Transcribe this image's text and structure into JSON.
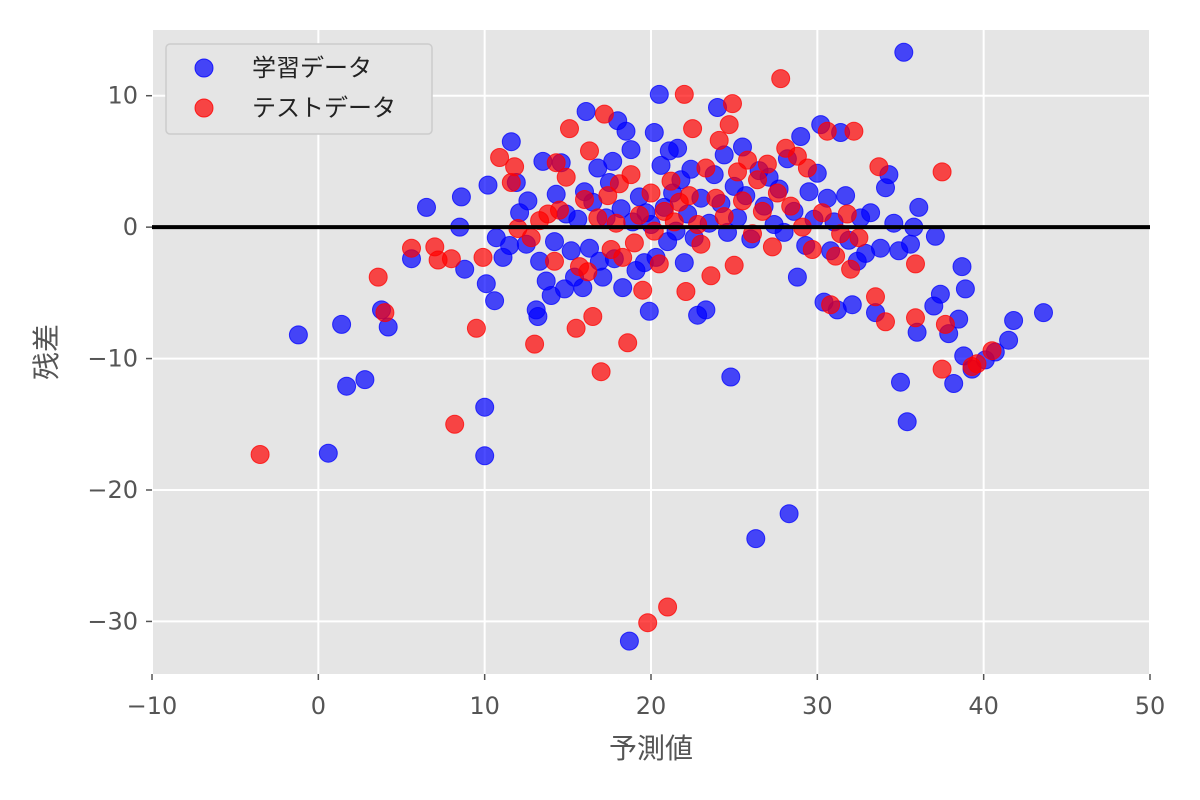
{
  "chart_data": {
    "type": "scatter",
    "title": "",
    "xlabel": "予測値",
    "ylabel": "残差",
    "xlim": [
      -10,
      50
    ],
    "ylim": [
      -34,
      15
    ],
    "xticks": [
      -10,
      0,
      10,
      20,
      30,
      40,
      50
    ],
    "yticks": [
      -30,
      -20,
      -10,
      0,
      10
    ],
    "tick_labels": {
      "x": [
        "−10",
        "0",
        "10",
        "20",
        "30",
        "40",
        "50"
      ],
      "y": [
        "−30",
        "−20",
        "−10",
        "0",
        "10"
      ]
    },
    "grid": true,
    "legend_position": "upper-left",
    "hline": {
      "y": 0,
      "color": "#000000"
    },
    "series": [
      {
        "name": "学習データ",
        "color": "#0000ff",
        "points": [
          [
            -1.2,
            -8.2
          ],
          [
            0.6,
            -17.2
          ],
          [
            1.4,
            -7.4
          ],
          [
            1.7,
            -12.1
          ],
          [
            2.8,
            -11.6
          ],
          [
            3.8,
            -6.3
          ],
          [
            4.2,
            -7.6
          ],
          [
            5.6,
            -2.4
          ],
          [
            6.5,
            1.5
          ],
          [
            8.5,
            0.0
          ],
          [
            8.6,
            2.3
          ],
          [
            8.8,
            -3.2
          ],
          [
            10.0,
            -13.7
          ],
          [
            10.0,
            -17.4
          ],
          [
            10.2,
            3.2
          ],
          [
            10.1,
            -4.3
          ],
          [
            10.7,
            -0.8
          ],
          [
            10.6,
            -5.6
          ],
          [
            11.1,
            -2.3
          ],
          [
            11.5,
            -1.4
          ],
          [
            11.6,
            6.5
          ],
          [
            11.9,
            3.4
          ],
          [
            12.1,
            1.1
          ],
          [
            12.5,
            -1.3
          ],
          [
            12.6,
            2.0
          ],
          [
            13.1,
            -6.3
          ],
          [
            13.2,
            -6.8
          ],
          [
            13.3,
            -2.6
          ],
          [
            13.5,
            5.0
          ],
          [
            13.7,
            -4.1
          ],
          [
            14.0,
            -5.2
          ],
          [
            14.2,
            -1.1
          ],
          [
            14.3,
            2.5
          ],
          [
            14.6,
            4.9
          ],
          [
            14.8,
            -4.7
          ],
          [
            14.9,
            1.0
          ],
          [
            15.2,
            -1.8
          ],
          [
            15.4,
            -3.8
          ],
          [
            15.6,
            0.6
          ],
          [
            15.9,
            -4.6
          ],
          [
            16.0,
            2.7
          ],
          [
            16.1,
            8.8
          ],
          [
            16.3,
            -1.6
          ],
          [
            16.5,
            1.9
          ],
          [
            16.8,
            4.5
          ],
          [
            16.9,
            -2.6
          ],
          [
            17.1,
            -3.8
          ],
          [
            17.3,
            0.7
          ],
          [
            17.5,
            3.4
          ],
          [
            17.7,
            5.0
          ],
          [
            17.8,
            -2.4
          ],
          [
            18.0,
            8.1
          ],
          [
            18.2,
            1.4
          ],
          [
            18.3,
            -4.6
          ],
          [
            18.5,
            7.3
          ],
          [
            18.7,
            -31.5
          ],
          [
            18.8,
            5.9
          ],
          [
            18.9,
            0.4
          ],
          [
            19.1,
            -3.3
          ],
          [
            19.3,
            2.3
          ],
          [
            19.6,
            -2.7
          ],
          [
            19.7,
            1.1
          ],
          [
            19.9,
            -6.4
          ],
          [
            20.0,
            0.2
          ],
          [
            20.2,
            7.2
          ],
          [
            20.3,
            -2.3
          ],
          [
            20.5,
            10.1
          ],
          [
            20.6,
            4.7
          ],
          [
            20.8,
            1.5
          ],
          [
            21.0,
            -1.1
          ],
          [
            21.1,
            5.8
          ],
          [
            21.3,
            2.6
          ],
          [
            21.5,
            -0.3
          ],
          [
            21.6,
            6.0
          ],
          [
            21.8,
            3.6
          ],
          [
            22.0,
            -2.7
          ],
          [
            22.2,
            1.0
          ],
          [
            22.4,
            4.4
          ],
          [
            22.6,
            -0.8
          ],
          [
            22.8,
            -6.7
          ],
          [
            23.0,
            2.2
          ],
          [
            23.3,
            -6.3
          ],
          [
            23.5,
            0.3
          ],
          [
            23.8,
            4.0
          ],
          [
            24.0,
            9.1
          ],
          [
            24.2,
            1.8
          ],
          [
            24.4,
            5.5
          ],
          [
            24.6,
            -0.4
          ],
          [
            24.8,
            -11.4
          ],
          [
            25.0,
            3.1
          ],
          [
            25.2,
            0.7
          ],
          [
            25.5,
            6.1
          ],
          [
            25.7,
            2.4
          ],
          [
            26.0,
            -0.9
          ],
          [
            26.3,
            -23.7
          ],
          [
            26.5,
            4.3
          ],
          [
            26.8,
            1.6
          ],
          [
            27.1,
            3.8
          ],
          [
            27.4,
            0.2
          ],
          [
            27.7,
            2.9
          ],
          [
            28.0,
            -0.4
          ],
          [
            28.2,
            5.2
          ],
          [
            28.3,
            -21.8
          ],
          [
            28.6,
            1.2
          ],
          [
            28.8,
            -3.8
          ],
          [
            29.0,
            6.9
          ],
          [
            29.3,
            -1.4
          ],
          [
            29.5,
            2.7
          ],
          [
            29.8,
            0.6
          ],
          [
            30.0,
            4.1
          ],
          [
            30.2,
            7.8
          ],
          [
            30.4,
            -5.7
          ],
          [
            30.6,
            2.2
          ],
          [
            30.8,
            -1.8
          ],
          [
            31.0,
            0.4
          ],
          [
            31.2,
            -6.3
          ],
          [
            31.4,
            7.2
          ],
          [
            31.7,
            2.4
          ],
          [
            31.9,
            -1.0
          ],
          [
            32.1,
            -5.9
          ],
          [
            32.4,
            -2.6
          ],
          [
            32.6,
            0.7
          ],
          [
            32.9,
            -2.0
          ],
          [
            33.2,
            1.1
          ],
          [
            33.5,
            -6.5
          ],
          [
            33.8,
            -1.6
          ],
          [
            34.1,
            3.0
          ],
          [
            34.3,
            4.0
          ],
          [
            34.6,
            0.3
          ],
          [
            34.9,
            -1.8
          ],
          [
            35.0,
            -11.8
          ],
          [
            35.2,
            13.3
          ],
          [
            35.4,
            -14.8
          ],
          [
            35.6,
            -1.3
          ],
          [
            35.8,
            0.0
          ],
          [
            36.0,
            -8.0
          ],
          [
            36.1,
            1.5
          ],
          [
            37.0,
            -6.0
          ],
          [
            37.1,
            -0.7
          ],
          [
            37.4,
            -5.1
          ],
          [
            37.9,
            -8.1
          ],
          [
            38.2,
            -11.9
          ],
          [
            38.5,
            -7.0
          ],
          [
            38.7,
            -3.0
          ],
          [
            38.8,
            -9.8
          ],
          [
            38.9,
            -4.7
          ],
          [
            39.3,
            -10.8
          ],
          [
            40.1,
            -10.1
          ],
          [
            40.7,
            -9.5
          ],
          [
            41.5,
            -8.6
          ],
          [
            41.8,
            -7.1
          ],
          [
            43.6,
            -6.5
          ]
        ]
      },
      {
        "name": "テストデータ",
        "color": "#ff0000",
        "points": [
          [
            -3.5,
            -17.3
          ],
          [
            3.6,
            -3.8
          ],
          [
            4.0,
            -6.5
          ],
          [
            5.6,
            -1.6
          ],
          [
            7.0,
            -1.5
          ],
          [
            7.2,
            -2.5
          ],
          [
            8.0,
            -2.4
          ],
          [
            8.2,
            -15.0
          ],
          [
            9.5,
            -7.7
          ],
          [
            9.9,
            -2.3
          ],
          [
            10.9,
            5.3
          ],
          [
            11.6,
            3.4
          ],
          [
            11.8,
            4.6
          ],
          [
            12.0,
            -0.1
          ],
          [
            12.8,
            -0.8
          ],
          [
            13.0,
            -8.9
          ],
          [
            13.3,
            0.5
          ],
          [
            13.8,
            1.0
          ],
          [
            14.2,
            -2.6
          ],
          [
            14.3,
            4.9
          ],
          [
            14.5,
            1.3
          ],
          [
            14.9,
            3.8
          ],
          [
            15.1,
            7.5
          ],
          [
            15.5,
            -7.7
          ],
          [
            15.7,
            -3.0
          ],
          [
            16.0,
            2.1
          ],
          [
            16.2,
            -3.4
          ],
          [
            16.3,
            5.8
          ],
          [
            16.5,
            -6.8
          ],
          [
            16.8,
            0.7
          ],
          [
            17.0,
            -11.0
          ],
          [
            17.2,
            8.6
          ],
          [
            17.4,
            2.4
          ],
          [
            17.6,
            -1.7
          ],
          [
            17.9,
            0.3
          ],
          [
            18.1,
            3.3
          ],
          [
            18.3,
            -2.3
          ],
          [
            18.6,
            -8.8
          ],
          [
            18.8,
            4.0
          ],
          [
            19.0,
            -1.2
          ],
          [
            19.3,
            0.9
          ],
          [
            19.5,
            -4.8
          ],
          [
            19.8,
            -30.1
          ],
          [
            20.0,
            2.6
          ],
          [
            20.2,
            -0.3
          ],
          [
            20.5,
            -2.8
          ],
          [
            20.8,
            1.2
          ],
          [
            21.0,
            -28.9
          ],
          [
            21.2,
            3.5
          ],
          [
            21.4,
            0.4
          ],
          [
            21.7,
            1.9
          ],
          [
            22.0,
            10.1
          ],
          [
            22.1,
            -4.9
          ],
          [
            22.3,
            2.4
          ],
          [
            22.5,
            7.5
          ],
          [
            22.8,
            0.2
          ],
          [
            23.0,
            -1.3
          ],
          [
            23.3,
            4.5
          ],
          [
            23.6,
            -3.7
          ],
          [
            23.9,
            2.2
          ],
          [
            24.1,
            6.6
          ],
          [
            24.4,
            0.8
          ],
          [
            24.7,
            7.8
          ],
          [
            24.9,
            9.4
          ],
          [
            25.0,
            -2.9
          ],
          [
            25.2,
            4.2
          ],
          [
            25.5,
            2.0
          ],
          [
            25.8,
            5.1
          ],
          [
            26.1,
            -0.5
          ],
          [
            26.4,
            3.6
          ],
          [
            26.7,
            1.2
          ],
          [
            27.0,
            4.8
          ],
          [
            27.3,
            -1.5
          ],
          [
            27.6,
            2.6
          ],
          [
            27.8,
            11.3
          ],
          [
            28.1,
            6.0
          ],
          [
            28.4,
            1.6
          ],
          [
            28.8,
            5.4
          ],
          [
            29.1,
            0.0
          ],
          [
            29.4,
            4.5
          ],
          [
            29.7,
            -1.7
          ],
          [
            30.3,
            1.1
          ],
          [
            30.6,
            7.3
          ],
          [
            30.8,
            -5.9
          ],
          [
            31.1,
            -2.2
          ],
          [
            31.4,
            -0.5
          ],
          [
            31.8,
            1.0
          ],
          [
            32.0,
            -3.2
          ],
          [
            32.2,
            7.3
          ],
          [
            32.5,
            -0.8
          ],
          [
            33.5,
            -5.3
          ],
          [
            33.7,
            4.6
          ],
          [
            34.1,
            -7.2
          ],
          [
            35.9,
            -2.8
          ],
          [
            35.9,
            -6.9
          ],
          [
            37.5,
            4.2
          ],
          [
            37.5,
            -10.8
          ],
          [
            37.7,
            -7.4
          ],
          [
            39.3,
            -10.6
          ],
          [
            39.6,
            -10.4
          ],
          [
            40.5,
            -9.4
          ]
        ]
      }
    ]
  }
}
